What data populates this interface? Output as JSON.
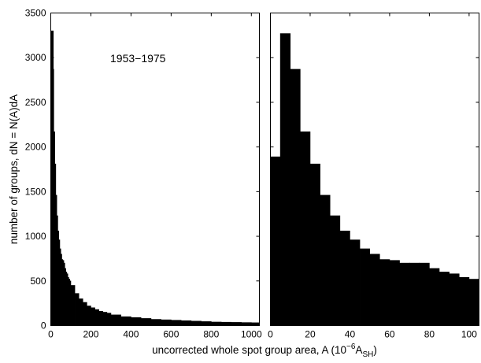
{
  "chart_data": [
    {
      "type": "bar",
      "subtype": "histogram",
      "annotation": "1953−1975",
      "ylabel": "number of groups, dN = N(A)dA",
      "xlim": [
        0,
        1040
      ],
      "ylim": [
        0,
        3500
      ],
      "xticks": [
        0,
        200,
        400,
        600,
        800,
        1000
      ],
      "xtick_labels": [
        "0",
        "200",
        "400",
        "600",
        "800",
        "1000"
      ],
      "yticks": [
        0,
        500,
        1000,
        1500,
        2000,
        2500,
        3000,
        3500
      ],
      "ytick_labels": [
        "0",
        "500",
        "1000",
        "1500",
        "2000",
        "2500",
        "3000",
        "3500"
      ],
      "grid": false,
      "bin_width": 5,
      "bins_x_start": [
        0,
        5,
        10,
        15,
        20,
        25,
        30,
        35,
        40,
        45,
        50,
        55,
        60,
        65,
        70,
        75,
        80,
        85,
        90,
        95,
        100,
        120,
        140,
        160,
        180,
        200,
        220,
        240,
        260,
        280,
        300,
        350,
        400,
        450,
        500,
        550,
        600,
        650,
        700,
        750,
        800,
        850,
        900,
        950,
        1000
      ],
      "bins_x_end": [
        5,
        10,
        15,
        20,
        25,
        30,
        35,
        40,
        45,
        50,
        55,
        60,
        65,
        70,
        75,
        80,
        85,
        90,
        95,
        100,
        120,
        140,
        160,
        180,
        200,
        220,
        240,
        260,
        280,
        300,
        350,
        400,
        450,
        500,
        550,
        600,
        650,
        700,
        750,
        800,
        850,
        900,
        950,
        1000,
        1040
      ],
      "values": [
        1890,
        3270,
        2870,
        2170,
        1810,
        1460,
        1230,
        1060,
        960,
        860,
        800,
        740,
        730,
        700,
        640,
        600,
        580,
        540,
        520,
        500,
        450,
        360,
        300,
        260,
        220,
        200,
        180,
        160,
        150,
        140,
        120,
        100,
        90,
        80,
        70,
        65,
        60,
        55,
        50,
        45,
        40,
        38,
        36,
        34,
        32
      ],
      "peak_value": 3300,
      "peak_x": 7
    },
    {
      "type": "bar",
      "subtype": "histogram",
      "xlim": [
        0,
        105
      ],
      "ylim": [
        0,
        3500
      ],
      "xticks": [
        0,
        20,
        40,
        60,
        80,
        100
      ],
      "xtick_labels": [
        "0",
        "20",
        "40",
        "60",
        "80",
        "100"
      ],
      "grid": false,
      "bin_width": 5,
      "categories": [
        "0-5",
        "5-10",
        "10-15",
        "15-20",
        "20-25",
        "25-30",
        "30-35",
        "35-40",
        "40-45",
        "45-50",
        "50-55",
        "55-60",
        "60-65",
        "65-70",
        "70-75",
        "75-80",
        "80-85",
        "85-90",
        "90-95",
        "95-100",
        "100-105"
      ],
      "bins_x_start": [
        0,
        5,
        10,
        15,
        20,
        25,
        30,
        35,
        40,
        45,
        50,
        55,
        60,
        65,
        70,
        75,
        80,
        85,
        90,
        95,
        100
      ],
      "values": [
        1890,
        3270,
        2870,
        2170,
        1810,
        1460,
        1230,
        1060,
        960,
        860,
        800,
        740,
        730,
        700,
        700,
        700,
        640,
        600,
        580,
        540,
        520
      ]
    }
  ],
  "shared_xlabel": "uncorrected whole spot group area, A (10",
  "shared_xlabel_sup": "−6",
  "shared_xlabel_rest": "A",
  "shared_xlabel_sub": "SH",
  "shared_xlabel_close": ")"
}
